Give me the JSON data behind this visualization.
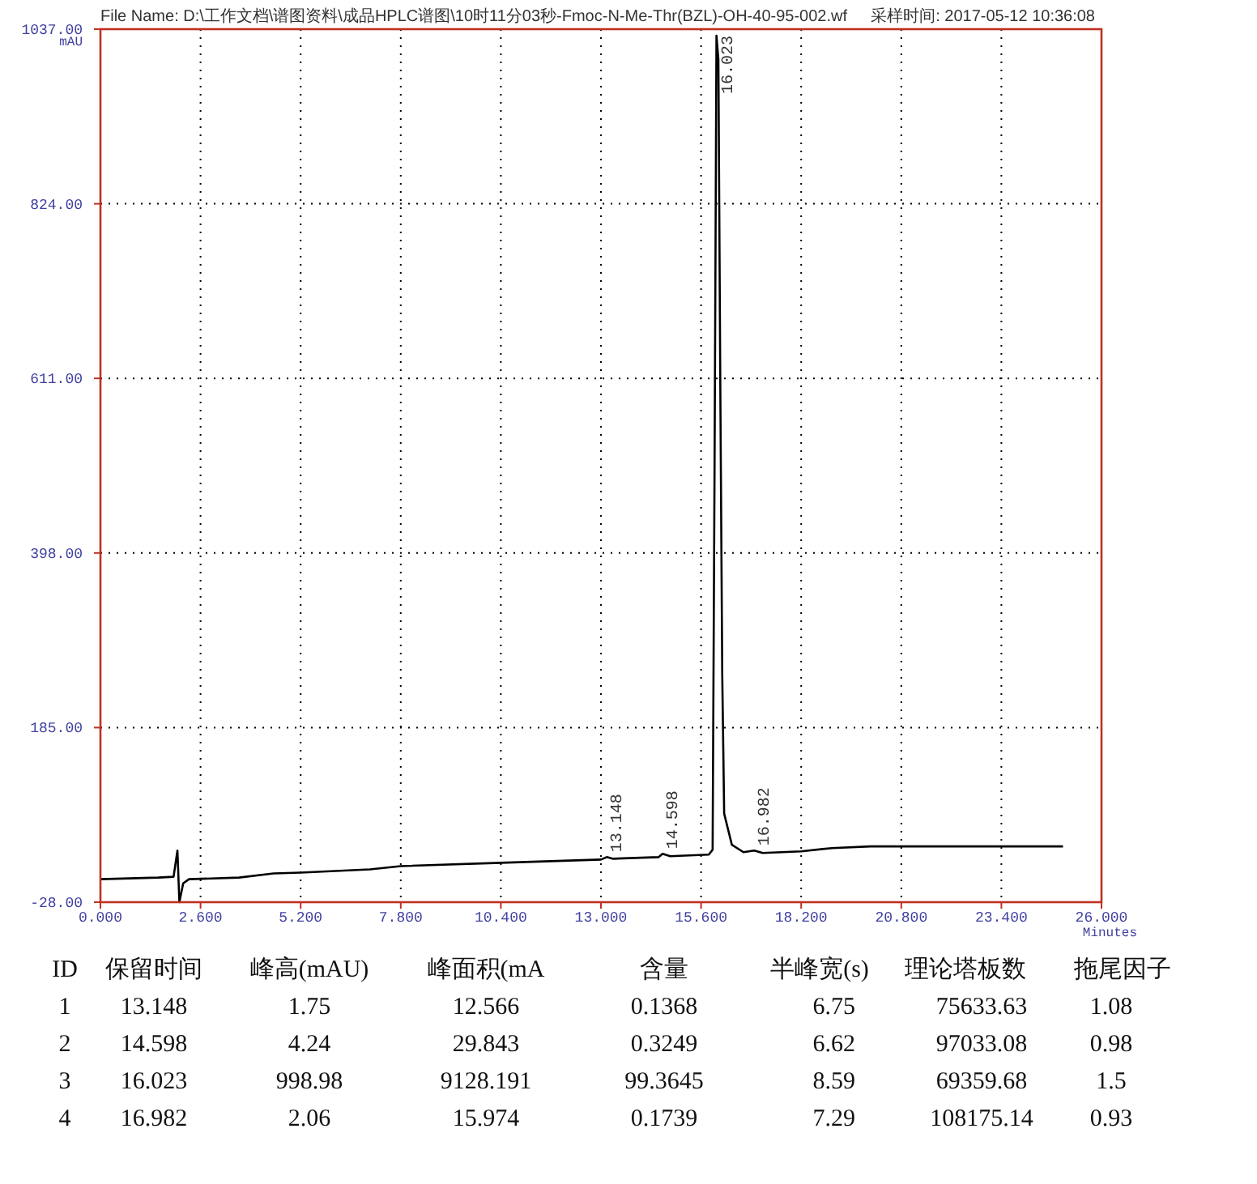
{
  "chart_data": {
    "type": "line",
    "ylabel": "mAU",
    "xlabel": "Minutes",
    "xlim": [
      0,
      26
    ],
    "ylim": [
      -28,
      1037
    ],
    "xticks": [
      {
        "value": 0,
        "label": "0.000"
      },
      {
        "value": 2.6,
        "label": "2.600"
      },
      {
        "value": 5.2,
        "label": "5.200"
      },
      {
        "value": 7.8,
        "label": "7.800"
      },
      {
        "value": 10.4,
        "label": "10.400"
      },
      {
        "value": 13,
        "label": "13.000"
      },
      {
        "value": 15.6,
        "label": "15.600"
      },
      {
        "value": 18.2,
        "label": "18.200"
      },
      {
        "value": 20.8,
        "label": "20.800"
      },
      {
        "value": 23.4,
        "label": "23.400"
      },
      {
        "value": 26,
        "label": "26.000"
      }
    ],
    "yticks": [
      {
        "value": -28,
        "label": "-28.00"
      },
      {
        "value": 185,
        "label": "185.00"
      },
      {
        "value": 398,
        "label": "398.00"
      },
      {
        "value": 611,
        "label": "611.00"
      },
      {
        "value": 824,
        "label": "824.00"
      },
      {
        "value": 1037,
        "label": "1037.00"
      }
    ],
    "grid": true,
    "line_style": "solid",
    "marker": "none",
    "series": [
      {
        "color": "#000000",
        "x": [
          0,
          1.5,
          1.9,
          2.0,
          2.05,
          2.15,
          2.3,
          3.6,
          4.5,
          5.2,
          7.0,
          7.8,
          10.4,
          13.0,
          13.15,
          13.3,
          14.5,
          14.6,
          14.8,
          15.8,
          15.9,
          15.95,
          16.0,
          16.05,
          16.1,
          16.15,
          16.2,
          16.4,
          16.7,
          16.98,
          17.2,
          18.2,
          19.0,
          20.0,
          25.0
        ],
        "values": [
          0,
          2,
          3,
          35,
          -28,
          -5,
          0,
          2,
          7,
          8,
          12,
          16,
          20,
          24,
          27,
          25,
          27,
          31,
          28,
          30,
          36,
          500,
          1029,
          1000,
          600,
          250,
          80,
          42,
          33,
          35,
          32,
          34,
          38,
          40,
          40
        ]
      }
    ],
    "annotations": [
      "File Name: D:\\工作文档\\谱图资料\\成品HPLC谱图\\10时11分03秒-Fmoc-N-Me-Thr(BZL)-OH-40-95-002.wf",
      "采样时间: 2017-05-12 10:36:08",
      {
        "text": "13.148",
        "x": 13.148,
        "y": 27
      },
      {
        "text": "14.598",
        "x": 14.598,
        "y": 31
      },
      {
        "text": "16.023",
        "x": 16.023,
        "y": 1029
      },
      {
        "text": "16.982",
        "x": 16.982,
        "y": 35
      },
      "ID",
      "保留时间",
      "峰高(mAU)",
      "峰面积(mA",
      "含量",
      "半峰宽(s)",
      "理论塔板数",
      "拖尾因子",
      "1",
      "13.148",
      "1.75",
      "12.566",
      "0.1368",
      "6.75",
      "75633.63",
      "1.08",
      "2",
      "14.598",
      "4.24",
      "29.843",
      "0.3249",
      "6.62",
      "97033.08",
      "0.98",
      "3",
      "16.023",
      "998.98",
      "9128.191",
      "99.3645",
      "8.59",
      "69359.68",
      "1.5",
      "4",
      "16.982",
      "2.06",
      "15.974",
      "0.1739",
      "7.29",
      "108175.14",
      "0.93"
    ]
  }
}
